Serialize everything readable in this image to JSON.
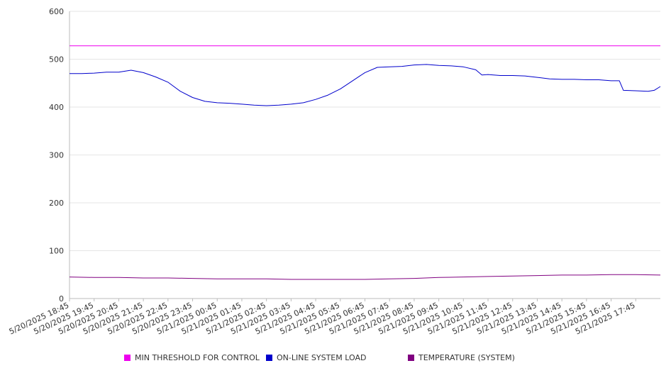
{
  "chart_data": {
    "type": "line",
    "title": "",
    "xlabel": "",
    "ylabel": "",
    "ylim": [
      0,
      600
    ],
    "yticks": [
      0,
      100,
      200,
      300,
      400,
      500,
      600
    ],
    "grid": "horizontal",
    "legend_position": "bottom",
    "x_range": [
      "5/20/2025 18:45",
      "5/21/2025 18:45"
    ],
    "x_tick_labels": [
      "5/20/2025 18:45",
      "5/20/2025 19:45",
      "5/20/2025 20:45",
      "5/20/2025 21:45",
      "5/20/2025 22:45",
      "5/20/2025 23:45",
      "5/21/2025 00:45",
      "5/21/2025 01:45",
      "5/21/2025 02:45",
      "5/21/2025 03:45",
      "5/21/2025 04:45",
      "5/21/2025 05:45",
      "5/21/2025 06:45",
      "5/21/2025 07:45",
      "5/21/2025 08:45",
      "5/21/2025 09:45",
      "5/21/2025 10:45",
      "5/21/2025 11:45",
      "5/21/2025 12:45",
      "5/21/2025 13:45",
      "5/21/2025 14:45",
      "5/21/2025 15:45",
      "5/21/2025 16:45",
      "5/21/2025 17:45"
    ],
    "series": [
      {
        "name": "MIN THRESHOLD FOR CONTROL",
        "color": "#ee00ee",
        "points": [
          [
            "5/20/2025 18:45",
            528
          ],
          [
            "5/21/2025 18:45",
            528
          ]
        ]
      },
      {
        "name": "ON-LINE SYSTEM LOAD",
        "color": "#0000cc",
        "points": [
          [
            "5/20/2025 18:45",
            470
          ],
          [
            "5/20/2025 19:15",
            470
          ],
          [
            "5/20/2025 19:45",
            471
          ],
          [
            "5/20/2025 20:15",
            473
          ],
          [
            "5/20/2025 20:45",
            473
          ],
          [
            "5/20/2025 21:15",
            477
          ],
          [
            "5/20/2025 21:45",
            472
          ],
          [
            "5/20/2025 22:15",
            463
          ],
          [
            "5/20/2025 22:45",
            452
          ],
          [
            "5/20/2025 23:15",
            433
          ],
          [
            "5/20/2025 23:45",
            420
          ],
          [
            "5/21/2025 00:15",
            412
          ],
          [
            "5/21/2025 00:45",
            409
          ],
          [
            "5/21/2025 01:15",
            408
          ],
          [
            "5/21/2025 01:45",
            406
          ],
          [
            "5/21/2025 02:15",
            404
          ],
          [
            "5/21/2025 02:45",
            403
          ],
          [
            "5/21/2025 03:15",
            404
          ],
          [
            "5/21/2025 03:45",
            406
          ],
          [
            "5/21/2025 04:15",
            409
          ],
          [
            "5/21/2025 04:45",
            416
          ],
          [
            "5/21/2025 05:15",
            425
          ],
          [
            "5/21/2025 05:45",
            438
          ],
          [
            "5/21/2025 06:15",
            455
          ],
          [
            "5/21/2025 06:45",
            472
          ],
          [
            "5/21/2025 07:15",
            483
          ],
          [
            "5/21/2025 07:45",
            484
          ],
          [
            "5/21/2025 08:15",
            485
          ],
          [
            "5/21/2025 08:45",
            488
          ],
          [
            "5/21/2025 09:15",
            489
          ],
          [
            "5/21/2025 09:45",
            487
          ],
          [
            "5/21/2025 10:15",
            486
          ],
          [
            "5/21/2025 10:45",
            484
          ],
          [
            "5/21/2025 11:15",
            478
          ],
          [
            "5/21/2025 11:30",
            467
          ],
          [
            "5/21/2025 11:45",
            468
          ],
          [
            "5/21/2025 12:15",
            466
          ],
          [
            "5/21/2025 12:45",
            466
          ],
          [
            "5/21/2025 13:15",
            465
          ],
          [
            "5/21/2025 13:45",
            462
          ],
          [
            "5/21/2025 14:15",
            459
          ],
          [
            "5/21/2025 14:45",
            458
          ],
          [
            "5/21/2025 15:15",
            458
          ],
          [
            "5/21/2025 15:45",
            457
          ],
          [
            "5/21/2025 16:15",
            457
          ],
          [
            "5/21/2025 16:45",
            455
          ],
          [
            "5/21/2025 17:05",
            455
          ],
          [
            "5/21/2025 17:15",
            435
          ],
          [
            "5/21/2025 17:45",
            434
          ],
          [
            "5/21/2025 18:15",
            433
          ],
          [
            "5/21/2025 18:30",
            435
          ],
          [
            "5/21/2025 18:45",
            443
          ]
        ]
      },
      {
        "name": "TEMPERATURE (SYSTEM)",
        "color": "#800080",
        "points": [
          [
            "5/20/2025 18:45",
            45
          ],
          [
            "5/20/2025 19:45",
            44
          ],
          [
            "5/20/2025 20:45",
            44
          ],
          [
            "5/20/2025 21:45",
            43
          ],
          [
            "5/20/2025 22:45",
            43
          ],
          [
            "5/20/2025 23:45",
            42
          ],
          [
            "5/21/2025 00:45",
            41
          ],
          [
            "5/21/2025 01:45",
            41
          ],
          [
            "5/21/2025 02:45",
            41
          ],
          [
            "5/21/2025 03:45",
            40
          ],
          [
            "5/21/2025 04:45",
            40
          ],
          [
            "5/21/2025 05:45",
            40
          ],
          [
            "5/21/2025 06:45",
            40
          ],
          [
            "5/21/2025 07:45",
            41
          ],
          [
            "5/21/2025 08:45",
            42
          ],
          [
            "5/21/2025 09:45",
            44
          ],
          [
            "5/21/2025 10:45",
            45
          ],
          [
            "5/21/2025 11:45",
            46
          ],
          [
            "5/21/2025 12:45",
            47
          ],
          [
            "5/21/2025 13:45",
            48
          ],
          [
            "5/21/2025 14:45",
            49
          ],
          [
            "5/21/2025 15:45",
            49
          ],
          [
            "5/21/2025 16:45",
            50
          ],
          [
            "5/21/2025 17:45",
            50
          ],
          [
            "5/21/2025 18:45",
            49
          ]
        ]
      }
    ]
  }
}
